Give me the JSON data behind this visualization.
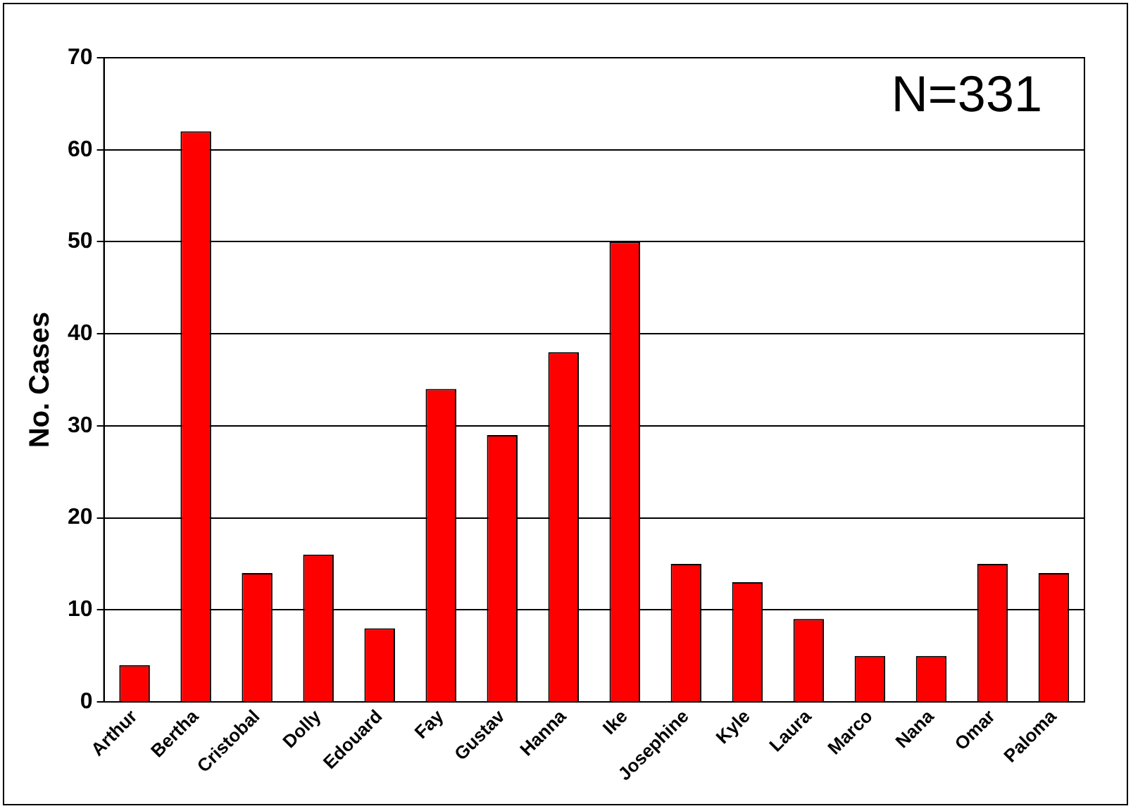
{
  "chart_data": {
    "type": "bar",
    "ylabel": "No. Cases",
    "categories": [
      "Arthur",
      "Bertha",
      "Cristobal",
      "Dolly",
      "Edouard",
      "Fay",
      "Gustav",
      "Hanna",
      "Ike",
      "Josephine",
      "Kyle",
      "Laura",
      "Marco",
      "Nana",
      "Omar",
      "Paloma"
    ],
    "values": [
      4,
      62,
      14,
      16,
      8,
      34,
      29,
      38,
      50,
      15,
      13,
      9,
      5,
      5,
      15,
      14
    ],
    "color": "#ff0000",
    "ylim": [
      0,
      70
    ],
    "yticks": [
      0,
      10,
      20,
      30,
      40,
      50,
      60,
      70
    ],
    "grid": "y",
    "legend": false,
    "annotations": [
      "N=331"
    ]
  }
}
